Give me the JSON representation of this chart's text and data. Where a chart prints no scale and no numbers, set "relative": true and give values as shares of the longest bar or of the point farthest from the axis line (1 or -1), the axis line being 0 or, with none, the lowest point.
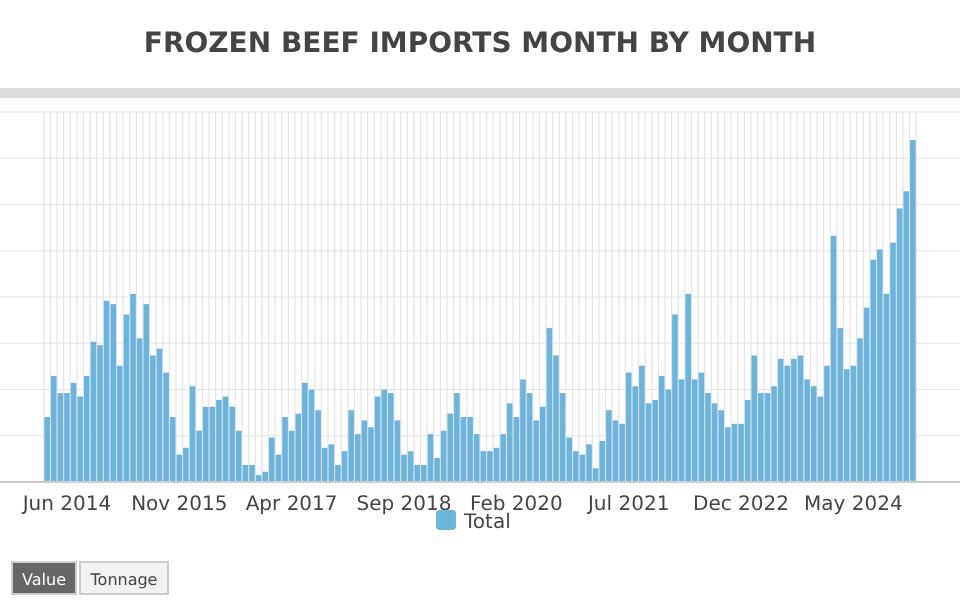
{
  "chart_data": {
    "type": "bar",
    "title": "FROZEN BEEF IMPORTS MONTH BY MONTH",
    "relative": true,
    "grid": true,
    "legend": "bottom",
    "categories": [
      null,
      null,
      null,
      "Jun 2014",
      null,
      null,
      null,
      null,
      null,
      null,
      null,
      null,
      null,
      null,
      null,
      null,
      null,
      null,
      null,
      null,
      "Nov 2015",
      null,
      null,
      null,
      null,
      null,
      null,
      null,
      null,
      null,
      null,
      null,
      null,
      null,
      null,
      null,
      null,
      "Apr 2017",
      null,
      null,
      null,
      null,
      null,
      null,
      null,
      null,
      null,
      null,
      null,
      null,
      null,
      null,
      null,
      null,
      "Sep 2018",
      null,
      null,
      null,
      null,
      null,
      null,
      null,
      null,
      null,
      null,
      null,
      null,
      null,
      null,
      null,
      null,
      "Feb 2020",
      null,
      null,
      null,
      null,
      null,
      null,
      null,
      null,
      null,
      null,
      null,
      null,
      null,
      null,
      null,
      null,
      "Jul 2021",
      null,
      null,
      null,
      null,
      null,
      null,
      null,
      null,
      null,
      null,
      null,
      null,
      null,
      null,
      null,
      null,
      "Dec 2022",
      null,
      null,
      null,
      null,
      null,
      null,
      null,
      null,
      null,
      null,
      null,
      null,
      null,
      null,
      null,
      null,
      "May 2024",
      null,
      null,
      null,
      null,
      null,
      null,
      null,
      null,
      null
    ],
    "series": [
      {
        "name": "Total",
        "color": "#6cb4dc",
        "values": [
          0.19,
          0.31,
          0.26,
          0.26,
          0.29,
          0.25,
          0.31,
          0.41,
          0.4,
          0.53,
          0.52,
          0.34,
          0.49,
          0.55,
          0.42,
          0.52,
          0.37,
          0.39,
          0.32,
          0.19,
          0.08,
          0.1,
          0.28,
          0.15,
          0.22,
          0.22,
          0.24,
          0.25,
          0.22,
          0.15,
          0.05,
          0.05,
          0.02,
          0.03,
          0.13,
          0.08,
          0.19,
          0.15,
          0.2,
          0.29,
          0.27,
          0.21,
          0.1,
          0.11,
          0.05,
          0.09,
          0.21,
          0.14,
          0.18,
          0.16,
          0.25,
          0.27,
          0.26,
          0.18,
          0.08,
          0.09,
          0.05,
          0.05,
          0.14,
          0.07,
          0.15,
          0.2,
          0.26,
          0.19,
          0.19,
          0.14,
          0.09,
          0.09,
          0.1,
          0.14,
          0.23,
          0.19,
          0.3,
          0.26,
          0.18,
          0.22,
          0.45,
          0.37,
          0.26,
          0.13,
          0.09,
          0.08,
          0.11,
          0.04,
          0.12,
          0.21,
          0.18,
          0.17,
          0.32,
          0.28,
          0.34,
          0.23,
          0.24,
          0.31,
          0.27,
          0.49,
          0.3,
          0.55,
          0.3,
          0.32,
          0.26,
          0.23,
          0.21,
          0.16,
          0.17,
          0.17,
          0.24,
          0.37,
          0.26,
          0.26,
          0.28,
          0.36,
          0.34,
          0.36,
          0.37,
          0.3,
          0.28,
          0.25,
          0.34,
          0.72,
          0.45,
          0.33,
          0.34,
          0.42,
          0.51,
          0.65,
          0.68,
          0.55,
          0.7,
          0.8,
          0.85,
          1
        ]
      }
    ],
    "annotations": [
      "Value",
      "Tonnage"
    ]
  }
}
